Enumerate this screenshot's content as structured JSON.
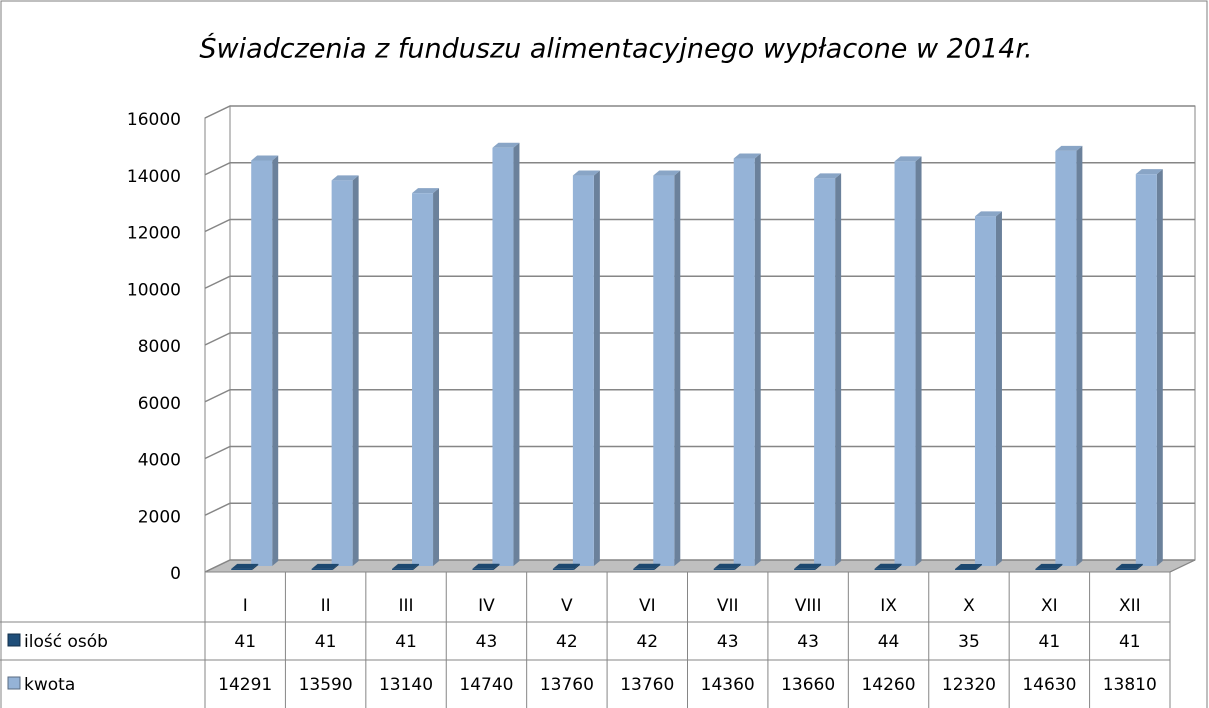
{
  "chart_data": {
    "type": "bar3d",
    "title": "Świadczenia z funduszu alimentacyjnego wypłacone w 2014r.",
    "categories": [
      "I",
      "II",
      "III",
      "IV",
      "V",
      "VI",
      "VII",
      "VIII",
      "IX",
      "X",
      "XI",
      "XII"
    ],
    "series": [
      {
        "name": "ilość osób",
        "color": "#1f4e79",
        "values": [
          41,
          41,
          41,
          43,
          42,
          42,
          43,
          43,
          44,
          35,
          41,
          41
        ]
      },
      {
        "name": "kwota",
        "color": "#95b3d7",
        "values": [
          14291,
          13590,
          13140,
          14740,
          13760,
          13760,
          14360,
          13660,
          14260,
          12320,
          14630,
          13810
        ]
      }
    ],
    "ylim": [
      0,
      16000
    ],
    "yticks": [
      0,
      2000,
      4000,
      6000,
      8000,
      10000,
      12000,
      14000,
      16000
    ],
    "grid": true,
    "data_table": true
  }
}
